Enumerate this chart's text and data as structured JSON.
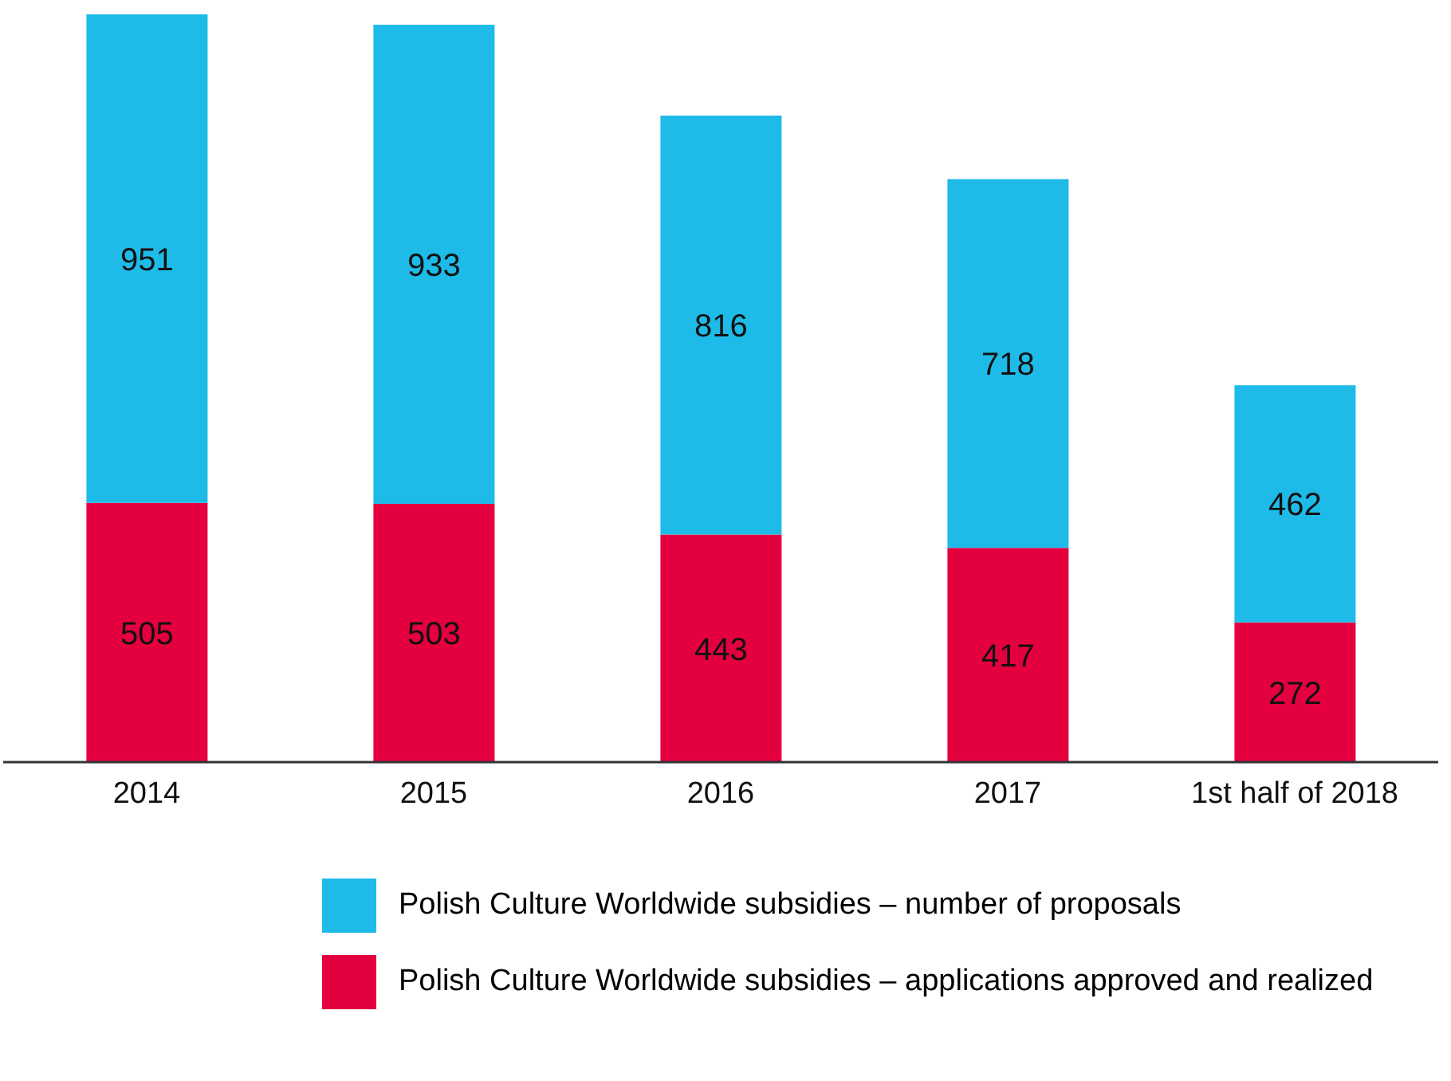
{
  "chart_data": {
    "type": "bar",
    "stacked": true,
    "data_labels": true,
    "legend": "bottom",
    "grid": false,
    "categories": [
      "2014",
      "2015",
      "2016",
      "2017",
      "1st half of 2018"
    ],
    "series": [
      {
        "name": "Polish Culture Worldwide subsidies – applications approved and realized",
        "color": "#e4003f",
        "values": [
          505,
          503,
          443,
          417,
          272
        ]
      },
      {
        "name": "Polish Culture Worldwide subsidies – number of proposals",
        "color": "#1ebbe9",
        "values": [
          951,
          933,
          816,
          718,
          462
        ]
      }
    ]
  }
}
